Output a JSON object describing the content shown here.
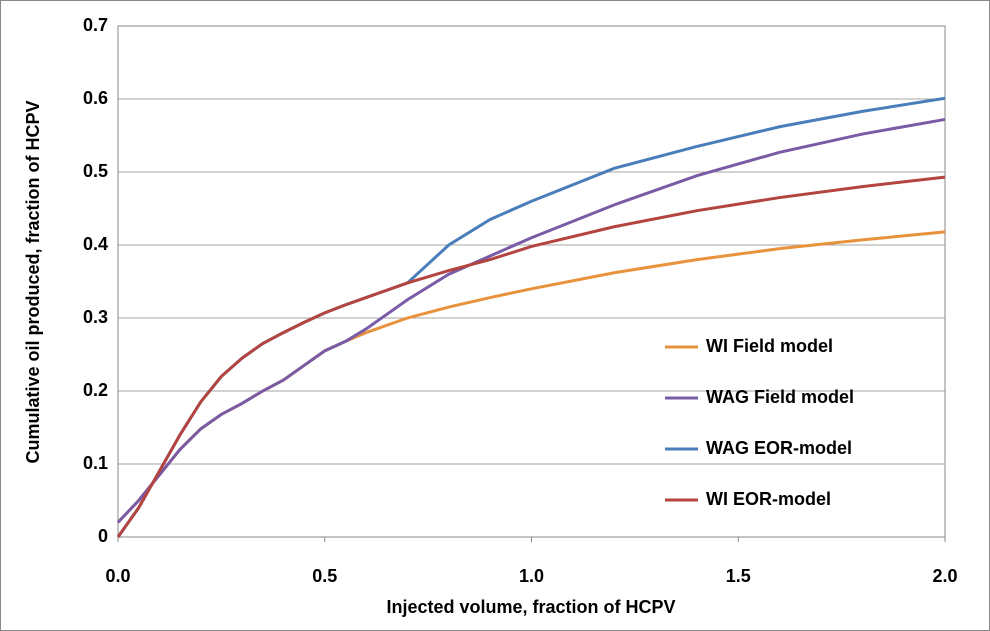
{
  "chart_data": {
    "type": "line",
    "xlabel": "Injected volume, fraction of HCPV",
    "ylabel": "Cumulative oil produced, fraction of HCPV",
    "x": [
      0,
      0.05,
      0.1,
      0.15,
      0.2,
      0.25,
      0.3,
      0.35,
      0.4,
      0.45,
      0.5,
      0.55,
      0.6,
      0.7,
      0.8,
      0.9,
      1.0,
      1.2,
      1.4,
      1.6,
      1.8,
      2.0
    ],
    "series": [
      {
        "name": "WI Field model",
        "color": "#e8923c",
        "values": [
          0.02,
          0.05,
          0.085,
          0.12,
          0.148,
          0.168,
          0.183,
          0.2,
          0.215,
          0.235,
          0.255,
          0.268,
          0.28,
          0.3,
          0.315,
          0.328,
          0.34,
          0.362,
          0.38,
          0.395,
          0.407,
          0.418
        ]
      },
      {
        "name": "WAG Field model",
        "color": "#7a5ba5",
        "values": [
          0.02,
          0.05,
          0.085,
          0.12,
          0.148,
          0.168,
          0.183,
          0.2,
          0.215,
          0.235,
          0.255,
          0.268,
          0.285,
          0.325,
          0.36,
          0.385,
          0.41,
          0.455,
          0.495,
          0.527,
          0.552,
          0.572
        ]
      },
      {
        "name": "WAG EOR-model",
        "color": "#4a7ebb",
        "values": [
          0,
          0.04,
          0.09,
          0.14,
          0.185,
          0.22,
          0.245,
          0.265,
          0.28,
          0.294,
          0.307,
          0.318,
          0.328,
          0.348,
          0.4,
          0.435,
          0.46,
          0.505,
          0.535,
          0.562,
          0.583,
          0.601
        ]
      },
      {
        "name": "WI EOR-model",
        "color": "#b3443f",
        "values": [
          0,
          0.04,
          0.09,
          0.14,
          0.185,
          0.22,
          0.245,
          0.265,
          0.28,
          0.294,
          0.307,
          0.318,
          0.328,
          0.348,
          0.365,
          0.38,
          0.398,
          0.425,
          0.447,
          0.465,
          0.48,
          0.493
        ]
      }
    ],
    "xlim": [
      0,
      2
    ],
    "xticks": [
      {
        "value": 0,
        "label": "0.0"
      },
      0.5,
      {
        "value": 1,
        "label": "1.0"
      },
      1.5,
      {
        "value": 2,
        "label": "2.0"
      }
    ],
    "ylim": [
      0,
      0.7
    ],
    "yticks": [
      0,
      0.1,
      0.2,
      0.3,
      0.4,
      0.5,
      0.6,
      0.7
    ],
    "grid": true,
    "legend": "lower right"
  }
}
